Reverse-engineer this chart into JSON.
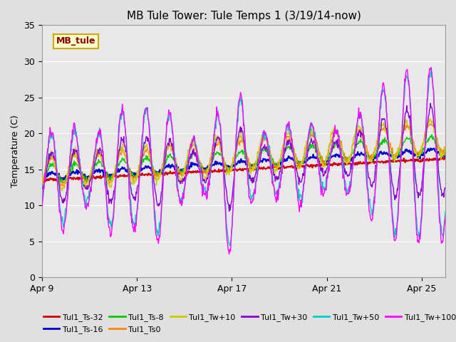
{
  "title": "MB Tule Tower: Tule Temps 1 (3/19/14-now)",
  "ylabel": "Temperature (C)",
  "ylim": [
    0,
    35
  ],
  "yticks": [
    0,
    5,
    10,
    15,
    20,
    25,
    30,
    35
  ],
  "xlim": [
    0,
    17
  ],
  "background_color": "#e0e0e0",
  "plot_bg_color": "#e8e8e8",
  "grid_color": "#ffffff",
  "xtick_labels": [
    "Apr 9",
    "Apr 13",
    "Apr 17",
    "Apr 21",
    "Apr 25"
  ],
  "xtick_positions": [
    0,
    4,
    8,
    12,
    16
  ],
  "legend_box_color": "#ffffcc",
  "legend_box_edge": "#ccaa00",
  "legend_box_text": "MB_tule",
  "series": [
    {
      "label": "Tul1_Ts-32",
      "color": "#cc0000"
    },
    {
      "label": "Tul1_Ts-16",
      "color": "#0000cc"
    },
    {
      "label": "Tul1_Ts-8",
      "color": "#00cc00"
    },
    {
      "label": "Tul1_Ts0",
      "color": "#ff8800"
    },
    {
      "label": "Tul1_Tw+10",
      "color": "#cccc00"
    },
    {
      "label": "Tul1_Tw+30",
      "color": "#8800cc"
    },
    {
      "label": "Tul1_Tw+50",
      "color": "#00cccc"
    },
    {
      "label": "Tul1_Tw+100",
      "color": "#ff00ff"
    }
  ],
  "num_days": 17,
  "pts_per_day": 48,
  "figsize": [
    6.4,
    4.8
  ],
  "dpi": 100
}
